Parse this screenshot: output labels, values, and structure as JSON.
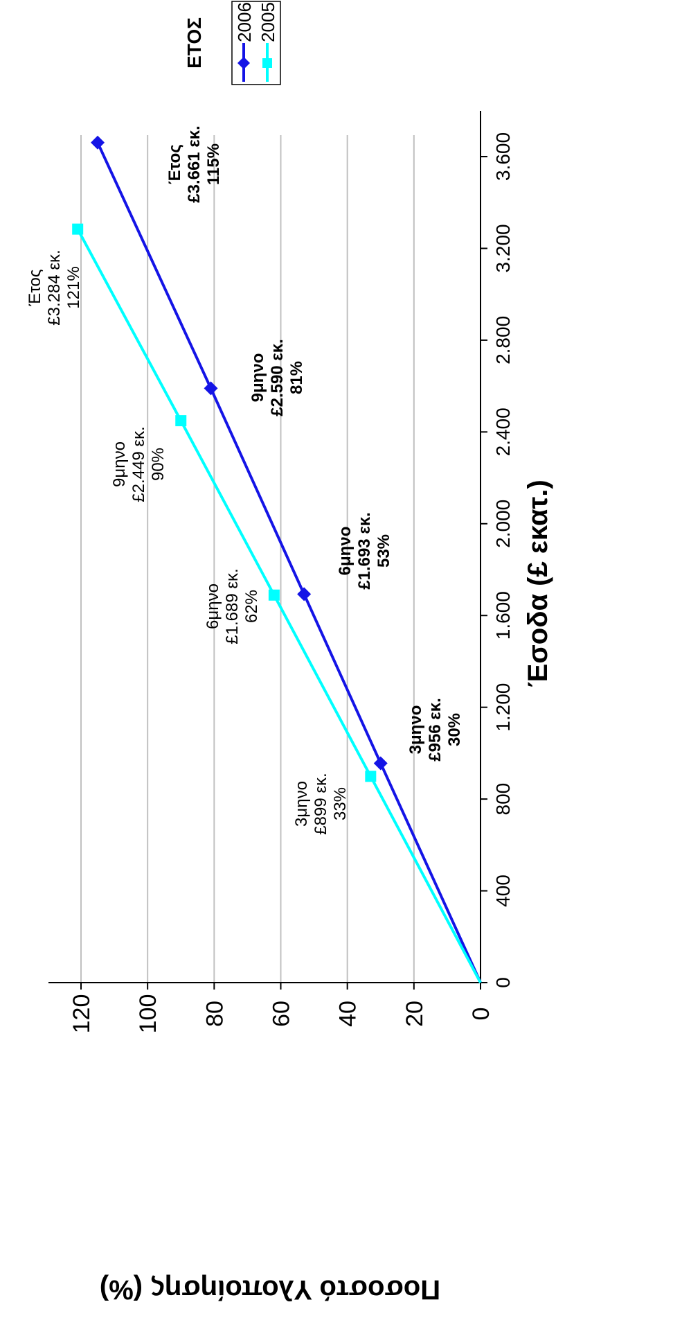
{
  "chart_data": {
    "type": "line",
    "xlabel": "Έσοδα (£ εκατ.)",
    "ylabel": "Ποσοστό Υλοποίησης (%)",
    "xlim": [
      0,
      3600
    ],
    "ylim": [
      0,
      120
    ],
    "x_ticks": [
      0,
      400,
      800,
      1200,
      1600,
      2000,
      2400,
      2800,
      3200,
      3600
    ],
    "x_tick_labels": [
      "0",
      "400",
      "800",
      "1.200",
      "1.600",
      "2.000",
      "2.400",
      "2.800",
      "3.200",
      "3.600"
    ],
    "y_ticks": [
      0,
      20,
      40,
      60,
      80,
      100,
      120
    ],
    "y_tick_labels": [
      "0",
      "20",
      "40",
      "60",
      "80",
      "100",
      "120"
    ],
    "grid": "horizontal",
    "legend": {
      "title": "ΕΤΟΣ",
      "placement": "top-right"
    },
    "series": [
      {
        "name": "2006",
        "color": "#1414e6",
        "marker": "diamond",
        "x": [
          0,
          956,
          1693,
          2590,
          3661
        ],
        "y": [
          0,
          30,
          53,
          81,
          115
        ],
        "labels": [
          null,
          [
            "3μηνο",
            "£956 εκ.",
            "30%"
          ],
          [
            "6μηνο",
            "£1.693 εκ.",
            "53%"
          ],
          [
            "9μηνο",
            "£2.590 εκ.",
            "81%"
          ],
          [
            "Έτος",
            "£3.661 εκ.",
            "115%"
          ]
        ]
      },
      {
        "name": "2005",
        "color": "#00ffff",
        "marker": "square",
        "x": [
          0,
          899,
          1689,
          2449,
          3284
        ],
        "y": [
          0,
          33,
          62,
          90,
          121
        ],
        "labels": [
          null,
          [
            "3μηνο",
            "£899 εκ.",
            "33%"
          ],
          [
            "6μηνο",
            "£1.689 εκ.",
            "62%"
          ],
          [
            "9μηνο",
            "£2.449 εκ.",
            "90%"
          ],
          [
            "Έτος",
            "£3.284 εκ.",
            "121%"
          ]
        ]
      }
    ]
  }
}
